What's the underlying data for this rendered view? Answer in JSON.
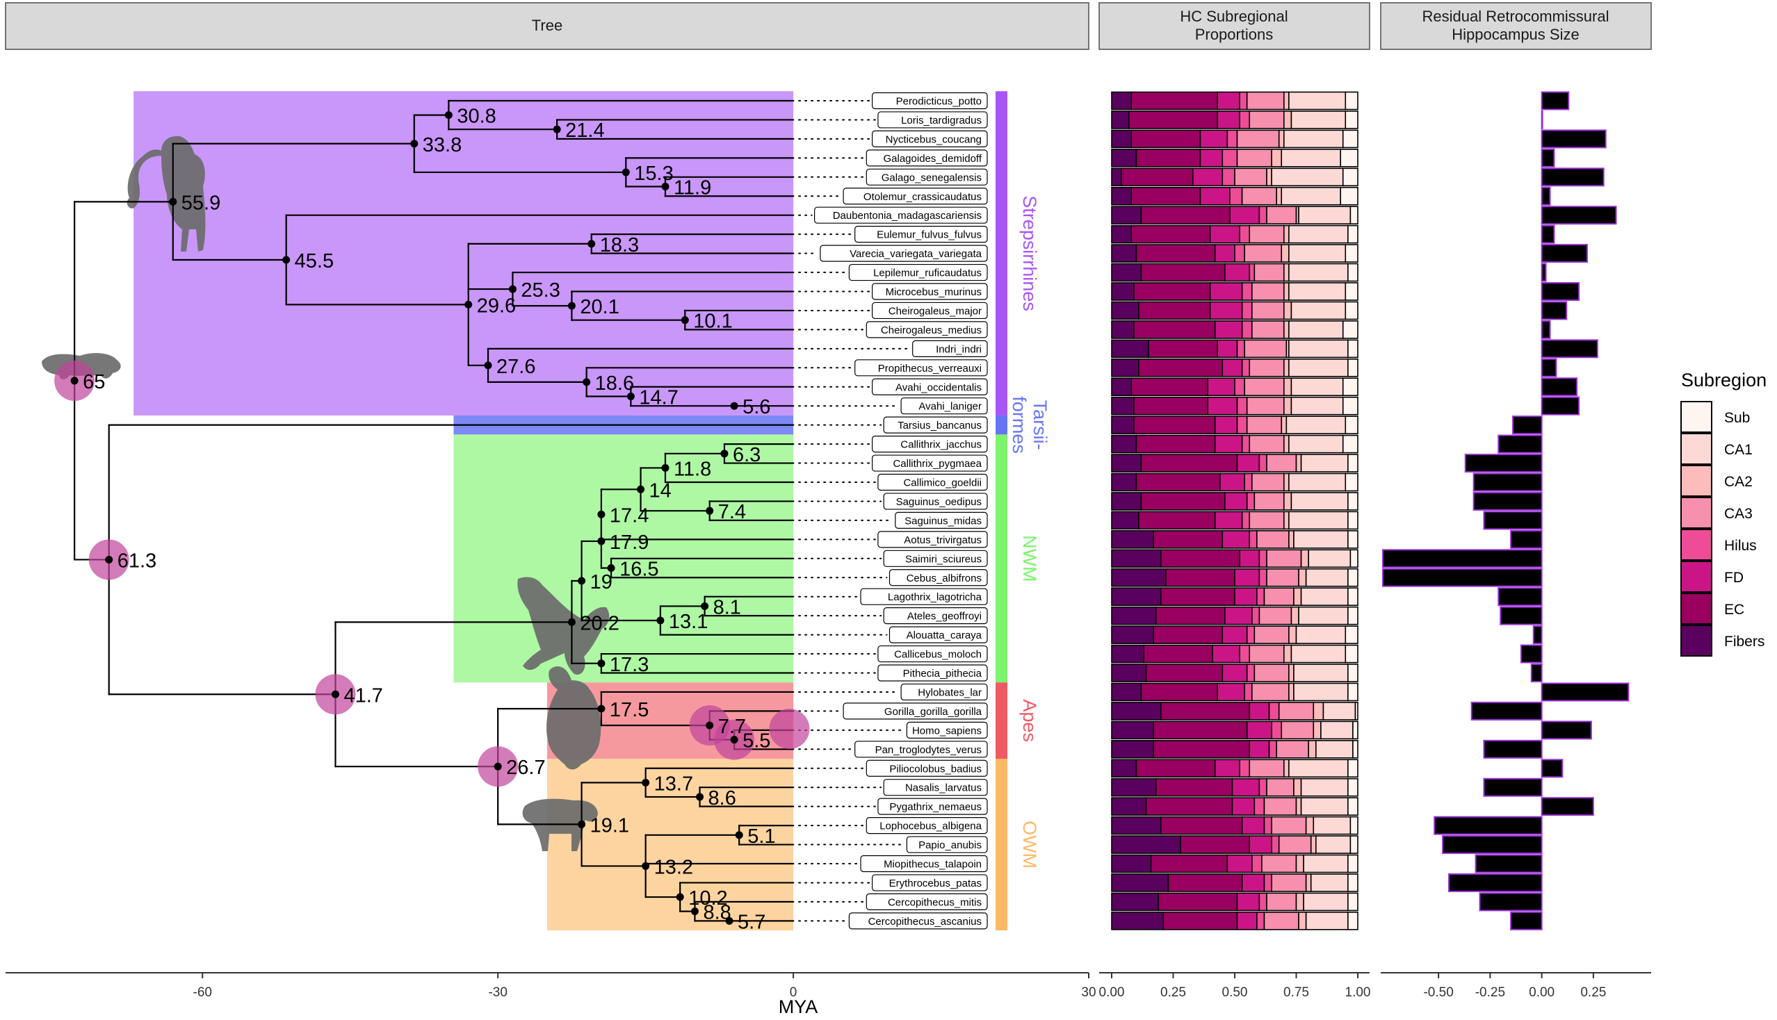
{
  "panels": {
    "tree": "Tree",
    "hc_line1": "HC Subregional",
    "hc_line2": "Proportions",
    "res_line1": "Residual Retrocommissural",
    "res_line2": "Hippocampus Size"
  },
  "x_axis_title": "MYA",
  "legend": {
    "title": "Subregion",
    "items": [
      {
        "label": "Sub",
        "color": "#FFF5F0"
      },
      {
        "label": "CA1",
        "color": "#FDD9D6"
      },
      {
        "label": "CA2",
        "color": "#FBBCBB"
      },
      {
        "label": "CA3",
        "color": "#F78FAE"
      },
      {
        "label": "Hilus",
        "color": "#EE4C97"
      },
      {
        "label": "FD",
        "color": "#CB1587"
      },
      {
        "label": "EC",
        "color": "#990060"
      },
      {
        "label": "Fibers",
        "color": "#5A005E"
      }
    ]
  },
  "clade_colors": {
    "strep": "#A855F7",
    "tars": "#6675F5",
    "nwm": "#7CF46C",
    "apes": "#EF5B64",
    "owm": "#FCBA66"
  },
  "clades": [
    {
      "lines": [
        "Strepsirrhines"
      ],
      "key": "strep",
      "from": 0,
      "to": 17
    },
    {
      "lines": [
        "Tarsii-",
        "formes"
      ],
      "key": "tars",
      "from": 17,
      "to": 18
    },
    {
      "lines": [
        "NWM"
      ],
      "key": "nwm",
      "from": 18,
      "to": 31
    },
    {
      "lines": [
        "Apes"
      ],
      "key": "apes",
      "from": 31,
      "to": 35
    },
    {
      "lines": [
        "OWM"
      ],
      "key": "owm",
      "from": 35,
      "to": 44
    }
  ],
  "species": [
    "Perodicticus_potto",
    "Loris_tardigradus",
    "Nycticebus_coucang",
    "Galagoides_demidoff",
    "Galago_senegalensis",
    "Otolemur_crassicaudatus",
    "Daubentonia_madagascariensis",
    "Eulemur_fulvus_fulvus",
    "Varecia_variegata_variegata",
    "Lepilemur_ruficaudatus",
    "Microcebus_murinus",
    "Cheirogaleus_major",
    "Cheirogaleus_medius",
    "Indri_indri",
    "Propithecus_verreauxi",
    "Avahi_occidentalis",
    "Avahi_laniger",
    "Tarsius_bancanus",
    "Callithrix_jacchus",
    "Callithrix_pygmaea",
    "Callimico_goeldii",
    "Saguinus_oedipus",
    "Saguinus_midas",
    "Aotus_trivirgatus",
    "Saimiri_sciureus",
    "Cebus_albifrons",
    "Lagothrix_lagotricha",
    "Ateles_geoffroyi",
    "Alouatta_caraya",
    "Callicebus_moloch",
    "Pithecia_pithecia",
    "Hylobates_lar",
    "Gorilla_gorilla_gorilla",
    "Homo_sapiens",
    "Pan_troglodytes_verus",
    "Piliocolobus_badius",
    "Nasalis_larvatus",
    "Pygathrix_nemaeus",
    "Lophocebus_albigena",
    "Papio_anubis",
    "Miopithecus_talapoin",
    "Erythrocebus_patas",
    "Cercopithecus_mitis",
    "Cercopithecus_ascanius"
  ],
  "tree_axis": {
    "xlim": [
      -80,
      30
    ],
    "ticks": [
      "-60",
      "-30",
      "0",
      "30"
    ]
  },
  "nodes": [
    {
      "id": "root",
      "age": "65",
      "x": -73,
      "pie": true
    },
    {
      "id": "strep",
      "age": "55.9",
      "x": -63,
      "parent": "root"
    },
    {
      "id": "lorisoid",
      "age": "33.8",
      "x": -38.5,
      "parent": "strep"
    },
    {
      "id": "lorid",
      "age": "30.8",
      "x": -35,
      "parent": "lorisoid"
    },
    {
      "id": "nyct",
      "age": "21.4",
      "x": -24,
      "parent": "lorid"
    },
    {
      "id": "galag",
      "age": "15.3",
      "x": -17,
      "parent": "lorisoid"
    },
    {
      "id": "galotol",
      "age": "11.9",
      "x": -13,
      "parent": "galag"
    },
    {
      "id": "lemuri",
      "age": "45.5",
      "x": -51.5,
      "parent": "strep"
    },
    {
      "id": "lemuroid",
      "age": "29.6",
      "x": -33,
      "parent": "lemuri"
    },
    {
      "id": "lemvar",
      "age": "18.3",
      "x": -20.5,
      "parent": "lemuroid"
    },
    {
      "id": "lepch",
      "age": "25.3",
      "x": -28.5,
      "parent": "lemuroid"
    },
    {
      "id": "cheir",
      "age": "20.1",
      "x": -22.5,
      "parent": "lepch"
    },
    {
      "id": "cheir2",
      "age": "10.1",
      "x": -11,
      "parent": "cheir"
    },
    {
      "id": "indr",
      "age": "27.6",
      "x": -31,
      "parent": "lemuroid"
    },
    {
      "id": "indr2",
      "age": "18.6",
      "x": -21,
      "parent": "indr"
    },
    {
      "id": "indr3",
      "age": "14.7",
      "x": -16.5,
      "parent": "indr2"
    },
    {
      "id": "avahi",
      "age": "5.6",
      "x": -6,
      "parent": "indr3"
    },
    {
      "id": "haplo",
      "age": "61.3",
      "x": -69.5,
      "pie": true,
      "parent": "root"
    },
    {
      "id": "anthro",
      "age": "41.7",
      "x": -46.5,
      "pie": true,
      "parent": "haplo"
    },
    {
      "id": "nwmroot",
      "age": "20.2",
      "x": -22.5,
      "parent": "anthro"
    },
    {
      "id": "nwm19",
      "age": "19",
      "x": -21.5,
      "parent": "nwmroot"
    },
    {
      "id": "nwm179",
      "age": "17.9",
      "x": -19.5,
      "parent": "nwm19"
    },
    {
      "id": "nwm174",
      "age": "17.4",
      "x": -19.5,
      "parent": "nwm179"
    },
    {
      "id": "nwm14",
      "age": "14",
      "x": -15.5,
      "parent": "nwm174"
    },
    {
      "id": "nwm118",
      "age": "11.8",
      "x": -13,
      "parent": "nwm14"
    },
    {
      "id": "nwm63",
      "age": "6.3",
      "x": -7,
      "parent": "nwm118"
    },
    {
      "id": "nwm74",
      "age": "7.4",
      "x": -8.5,
      "parent": "nwm14"
    },
    {
      "id": "nwm165",
      "age": "16.5",
      "x": -18.5,
      "parent": "nwm179"
    },
    {
      "id": "nwm131",
      "age": "13.1",
      "x": -13.5,
      "parent": "nwm19"
    },
    {
      "id": "nwm81",
      "age": "8.1",
      "x": -9,
      "parent": "nwm131"
    },
    {
      "id": "nwm173",
      "age": "17.3",
      "x": -19.5,
      "parent": "nwmroot"
    },
    {
      "id": "catar",
      "age": "26.7",
      "x": -30,
      "pie": true,
      "parent": "anthro"
    },
    {
      "id": "apes",
      "age": "17.5",
      "x": -19.5,
      "parent": "catar"
    },
    {
      "id": "hominin",
      "age": "7.7",
      "x": -8.5,
      "pie": true,
      "parent": "apes"
    },
    {
      "id": "homopan",
      "age": "5.5",
      "x": -6,
      "pie": true,
      "parent": "hominin"
    },
    {
      "id": "owm",
      "age": "19.1",
      "x": -21.5,
      "parent": "catar"
    },
    {
      "id": "colob",
      "age": "13.7",
      "x": -15,
      "parent": "owm"
    },
    {
      "id": "colob2",
      "age": "8.6",
      "x": -9.5,
      "parent": "colob"
    },
    {
      "id": "cercop",
      "age": "13.2",
      "x": -15,
      "parent": "owm"
    },
    {
      "id": "papio",
      "age": "5.1",
      "x": -5.5,
      "parent": "cercop"
    },
    {
      "id": "cerc102",
      "age": "10.2",
      "x": -11.5,
      "parent": "cercop"
    },
    {
      "id": "cerc88",
      "age": "8.8",
      "x": -10,
      "parent": "cerc102"
    },
    {
      "id": "cerc57",
      "age": "5.7",
      "x": -6.5,
      "parent": "cerc88"
    }
  ],
  "tips": [
    {
      "sp": 0,
      "parent": "lorid"
    },
    {
      "sp": 1,
      "parent": "nyct"
    },
    {
      "sp": 2,
      "parent": "nyct"
    },
    {
      "sp": 3,
      "parent": "galag"
    },
    {
      "sp": 4,
      "parent": "galotol"
    },
    {
      "sp": 5,
      "parent": "galotol"
    },
    {
      "sp": 6,
      "parent": "lemuri"
    },
    {
      "sp": 7,
      "parent": "lemvar"
    },
    {
      "sp": 8,
      "parent": "lemvar"
    },
    {
      "sp": 9,
      "parent": "lepch"
    },
    {
      "sp": 10,
      "parent": "cheir"
    },
    {
      "sp": 11,
      "parent": "cheir2"
    },
    {
      "sp": 12,
      "parent": "cheir2"
    },
    {
      "sp": 13,
      "parent": "indr"
    },
    {
      "sp": 14,
      "parent": "indr2"
    },
    {
      "sp": 15,
      "parent": "indr3"
    },
    {
      "sp": 16,
      "parent": "avahi"
    },
    {
      "sp": 17,
      "parent": "haplo"
    },
    {
      "sp": 18,
      "parent": "nwm63"
    },
    {
      "sp": 19,
      "parent": "nwm63"
    },
    {
      "sp": 20,
      "parent": "nwm118"
    },
    {
      "sp": 21,
      "parent": "nwm74"
    },
    {
      "sp": 22,
      "parent": "nwm74"
    },
    {
      "sp": 23,
      "parent": "nwm174"
    },
    {
      "sp": 24,
      "parent": "nwm165"
    },
    {
      "sp": 25,
      "parent": "nwm165"
    },
    {
      "sp": 26,
      "parent": "nwm81"
    },
    {
      "sp": 27,
      "parent": "nwm81"
    },
    {
      "sp": 28,
      "parent": "nwm131"
    },
    {
      "sp": 29,
      "parent": "nwm173"
    },
    {
      "sp": 30,
      "parent": "nwm173"
    },
    {
      "sp": 31,
      "parent": "apes"
    },
    {
      "sp": 32,
      "parent": "hominin"
    },
    {
      "sp": 33,
      "parent": "homopan"
    },
    {
      "sp": 34,
      "parent": "homopan"
    },
    {
      "sp": 35,
      "parent": "colob"
    },
    {
      "sp": 36,
      "parent": "colob2"
    },
    {
      "sp": 37,
      "parent": "colob2"
    },
    {
      "sp": 38,
      "parent": "papio"
    },
    {
      "sp": 39,
      "parent": "papio"
    },
    {
      "sp": 40,
      "parent": "cercop"
    },
    {
      "sp": 41,
      "parent": "cerc102"
    },
    {
      "sp": 42,
      "parent": "cerc88"
    },
    {
      "sp": 43,
      "parent": "cerc57"
    }
  ],
  "chart_data": [
    {
      "type": "bar",
      "orientation": "horizontal",
      "stacked": true,
      "title": "HC Subregional Proportions",
      "xlim": [
        0,
        1
      ],
      "ticks": [
        "0.00",
        "0.25",
        "0.50",
        "0.75",
        "1.00"
      ],
      "categories_ref": "species",
      "series_order": [
        "Fibers",
        "EC",
        "FD",
        "Hilus",
        "CA3",
        "CA2",
        "CA1",
        "Sub"
      ],
      "cumulative_boundaries": [
        [
          0.08,
          0.43,
          0.52,
          0.55,
          0.7,
          0.72,
          0.95
        ],
        [
          0.07,
          0.43,
          0.52,
          0.56,
          0.7,
          0.73,
          0.95
        ],
        [
          0.08,
          0.36,
          0.47,
          0.51,
          0.68,
          0.7,
          0.94
        ],
        [
          0.1,
          0.36,
          0.45,
          0.51,
          0.65,
          0.69,
          0.93
        ],
        [
          0.04,
          0.33,
          0.45,
          0.5,
          0.63,
          0.65,
          0.94
        ],
        [
          0.08,
          0.36,
          0.48,
          0.53,
          0.67,
          0.69,
          0.93
        ],
        [
          0.12,
          0.48,
          0.6,
          0.63,
          0.75,
          0.76,
          0.97
        ],
        [
          0.08,
          0.4,
          0.52,
          0.56,
          0.7,
          0.72,
          0.96
        ],
        [
          0.1,
          0.42,
          0.5,
          0.54,
          0.69,
          0.72,
          0.95
        ],
        [
          0.12,
          0.46,
          0.56,
          0.58,
          0.7,
          0.72,
          0.96
        ],
        [
          0.09,
          0.4,
          0.53,
          0.57,
          0.7,
          0.72,
          0.95
        ],
        [
          0.11,
          0.4,
          0.53,
          0.57,
          0.7,
          0.73,
          0.95
        ],
        [
          0.09,
          0.42,
          0.53,
          0.57,
          0.7,
          0.72,
          0.94
        ],
        [
          0.15,
          0.43,
          0.51,
          0.54,
          0.71,
          0.72,
          0.96
        ],
        [
          0.11,
          0.45,
          0.53,
          0.56,
          0.7,
          0.72,
          0.96
        ],
        [
          0.08,
          0.39,
          0.5,
          0.54,
          0.7,
          0.73,
          0.94
        ],
        [
          0.09,
          0.39,
          0.51,
          0.55,
          0.7,
          0.73,
          0.94
        ],
        [
          0.09,
          0.42,
          0.51,
          0.55,
          0.69,
          0.71,
          0.95
        ],
        [
          0.1,
          0.42,
          0.53,
          0.56,
          0.7,
          0.72,
          0.94
        ],
        [
          0.12,
          0.51,
          0.6,
          0.63,
          0.75,
          0.77,
          0.96
        ],
        [
          0.1,
          0.44,
          0.54,
          0.57,
          0.7,
          0.72,
          0.95
        ],
        [
          0.12,
          0.46,
          0.55,
          0.58,
          0.7,
          0.73,
          0.96
        ],
        [
          0.11,
          0.42,
          0.53,
          0.56,
          0.7,
          0.72,
          0.96
        ],
        [
          0.17,
          0.45,
          0.56,
          0.59,
          0.72,
          0.74,
          0.96
        ],
        [
          0.2,
          0.52,
          0.6,
          0.63,
          0.77,
          0.8,
          0.97
        ],
        [
          0.22,
          0.5,
          0.6,
          0.63,
          0.76,
          0.79,
          0.96
        ],
        [
          0.2,
          0.5,
          0.59,
          0.62,
          0.74,
          0.77,
          0.96
        ],
        [
          0.18,
          0.46,
          0.57,
          0.6,
          0.73,
          0.76,
          0.96
        ],
        [
          0.17,
          0.45,
          0.55,
          0.58,
          0.72,
          0.75,
          0.95
        ],
        [
          0.13,
          0.41,
          0.52,
          0.56,
          0.7,
          0.73,
          0.95
        ],
        [
          0.14,
          0.45,
          0.55,
          0.58,
          0.72,
          0.74,
          0.96
        ],
        [
          0.12,
          0.43,
          0.54,
          0.57,
          0.72,
          0.74,
          0.96
        ],
        [
          0.2,
          0.56,
          0.64,
          0.68,
          0.82,
          0.86,
          0.99
        ],
        [
          0.17,
          0.55,
          0.65,
          0.69,
          0.82,
          0.85,
          0.98
        ],
        [
          0.17,
          0.56,
          0.64,
          0.67,
          0.8,
          0.83,
          0.98
        ],
        [
          0.1,
          0.42,
          0.52,
          0.56,
          0.7,
          0.72,
          0.96
        ],
        [
          0.18,
          0.49,
          0.6,
          0.63,
          0.74,
          0.77,
          0.96
        ],
        [
          0.14,
          0.49,
          0.58,
          0.62,
          0.75,
          0.77,
          0.96
        ],
        [
          0.2,
          0.53,
          0.62,
          0.65,
          0.79,
          0.82,
          0.97
        ],
        [
          0.28,
          0.56,
          0.65,
          0.68,
          0.81,
          0.83,
          0.97
        ],
        [
          0.16,
          0.47,
          0.57,
          0.61,
          0.75,
          0.78,
          0.96
        ],
        [
          0.23,
          0.53,
          0.62,
          0.65,
          0.79,
          0.81,
          0.96
        ],
        [
          0.19,
          0.51,
          0.6,
          0.63,
          0.75,
          0.78,
          0.96
        ],
        [
          0.21,
          0.51,
          0.59,
          0.62,
          0.76,
          0.79,
          0.96
        ]
      ]
    },
    {
      "type": "bar",
      "orientation": "horizontal",
      "title": "Residual Retrocommissural Hippocampus Size",
      "xlim": [
        -0.78,
        0.53
      ],
      "ticks": [
        "-0.50",
        "-0.25",
        "0.00",
        "0.25"
      ],
      "tick_values": [
        -0.5,
        -0.25,
        0,
        0.25
      ],
      "categories_ref": "species",
      "values": [
        0.13,
        0.0,
        0.31,
        0.06,
        0.3,
        0.04,
        0.36,
        0.06,
        0.22,
        0.02,
        0.18,
        0.12,
        0.04,
        0.27,
        0.07,
        0.17,
        0.18,
        -0.14,
        -0.21,
        -0.37,
        -0.33,
        -0.33,
        -0.28,
        -0.15,
        -0.77,
        -0.77,
        -0.21,
        -0.2,
        -0.04,
        -0.1,
        -0.05,
        0.42,
        -0.34,
        0.24,
        -0.28,
        0.1,
        -0.28,
        0.25,
        -0.52,
        -0.48,
        -0.32,
        -0.45,
        -0.3,
        -0.15
      ]
    }
  ]
}
